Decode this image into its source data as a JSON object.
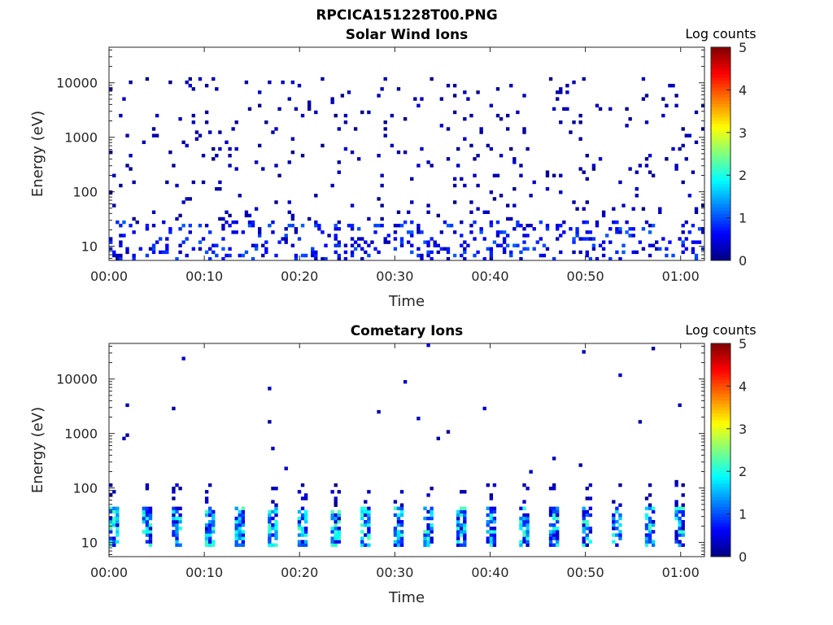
{
  "figure": {
    "title": "RPCICA151228T00.PNG"
  },
  "chart_data": [
    {
      "type": "heatmap",
      "title": "Solar Wind Ions",
      "xlabel": "Time",
      "ylabel": "Energy (eV)",
      "x_ticks": [
        "00:00",
        "00:10",
        "00:20",
        "00:30",
        "00:40",
        "00:50",
        "01:00"
      ],
      "x_tick_minutes": [
        0,
        10,
        20,
        30,
        40,
        50,
        60
      ],
      "xlim_minutes": [
        0,
        62.5
      ],
      "y_scale": "log",
      "y_ticks": [
        "10",
        "100",
        "1000",
        "10000"
      ],
      "y_tick_values": [
        10,
        100,
        1000,
        10000
      ],
      "ylim": [
        5.5,
        45000
      ],
      "colorbar": {
        "label": "Log counts",
        "ticks": [
          "0",
          "1",
          "2",
          "3",
          "4",
          "5"
        ],
        "range": [
          0,
          5
        ],
        "colormap": "jet"
      },
      "pattern": {
        "low_band_log_counts_max": 1.1,
        "scatter_density": 0.35,
        "description_energy_range_eV": [
          6,
          12000
        ]
      },
      "seed": 11,
      "grid": false
    },
    {
      "type": "heatmap",
      "title": "Cometary Ions",
      "xlabel": "Time",
      "ylabel": "Energy (eV)",
      "x_ticks": [
        "00:00",
        "00:10",
        "00:20",
        "00:30",
        "00:40",
        "00:50",
        "01:00"
      ],
      "x_tick_minutes": [
        0,
        10,
        20,
        30,
        40,
        50,
        60
      ],
      "xlim_minutes": [
        0,
        62.5
      ],
      "y_scale": "log",
      "y_ticks": [
        "10",
        "100",
        "1000",
        "10000"
      ],
      "y_tick_values": [
        10,
        100,
        1000,
        10000
      ],
      "ylim": [
        5.5,
        45000
      ],
      "colorbar": {
        "label": "Log counts",
        "ticks": [
          "0",
          "1",
          "2",
          "3",
          "4",
          "5"
        ],
        "range": [
          0,
          5
        ],
        "colormap": "jet"
      },
      "pattern": {
        "burst_period_minutes": 3.3,
        "burst_peak_log_counts": 2.3,
        "burst_energy_eV": [
          8,
          45
        ]
      },
      "seed": 29,
      "grid": false
    }
  ]
}
